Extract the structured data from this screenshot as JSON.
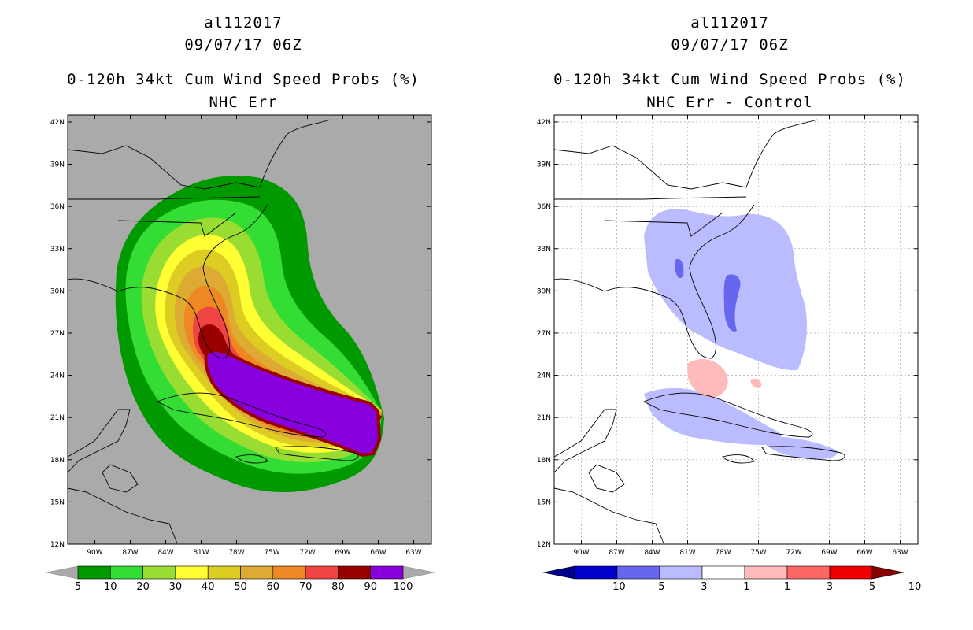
{
  "left": {
    "title_line1": "al112017",
    "title_line2": "09/07/17 06Z",
    "title_line3": "0-120h 34kt Cum Wind Speed Probs (%)",
    "title_line4": "NHC Err",
    "lat_labels": [
      "42N",
      "39N",
      "36N",
      "33N",
      "30N",
      "27N",
      "24N",
      "21N",
      "18N",
      "15N",
      "12N"
    ],
    "lon_labels": [
      "90W",
      "87W",
      "84W",
      "81W",
      "78W",
      "75W",
      "72W",
      "69W",
      "66W",
      "63W"
    ],
    "colorbar": {
      "colors": [
        "#009900",
        "#33dd33",
        "#99dd33",
        "#ffff33",
        "#ddcc22",
        "#ddaa33",
        "#ee8822",
        "#ee4444",
        "#990000",
        "#8800dd"
      ],
      "labels": [
        "5",
        "10",
        "20",
        "30",
        "40",
        "50",
        "60",
        "70",
        "80",
        "90",
        "100"
      ]
    }
  },
  "right": {
    "title_line1": "al112017",
    "title_line2": "09/07/17 06Z",
    "title_line3": "0-120h 34kt Cum Wind Speed Probs (%)",
    "title_line4": "NHC Err - Control",
    "lat_labels": [
      "42N",
      "39N",
      "36N",
      "33N",
      "30N",
      "27N",
      "24N",
      "21N",
      "18N",
      "15N",
      "12N"
    ],
    "lon_labels": [
      "90W",
      "87W",
      "84W",
      "81W",
      "78W",
      "75W",
      "72W",
      "69W",
      "66W",
      "63W"
    ],
    "colorbar": {
      "colors": [
        "#0000cc",
        "#6666ee",
        "#bbbbff",
        "#ffffff",
        "#ffbbbb",
        "#ff6666",
        "#ee0000"
      ],
      "labels": [
        "-10",
        "-5",
        "-3",
        "-1",
        "1",
        "3",
        "5",
        "10"
      ]
    }
  },
  "colors": {
    "map_background": "#aaaaaa",
    "left_end_arrow": "#aaaaaa",
    "right_low_arrow": "#000088",
    "right_high_arrow": "#880000"
  }
}
